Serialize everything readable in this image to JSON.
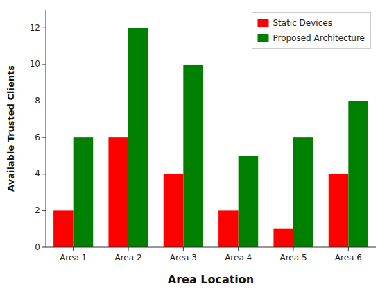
{
  "chart_data": {
    "type": "bar",
    "xlabel": "Area Location",
    "ylabel": "Available Trusted Clients",
    "categories": [
      "Area 1",
      "Area 2",
      "Area 3",
      "Area 4",
      "Area 5",
      "Area 6"
    ],
    "series": [
      {
        "name": "Static Devices",
        "color": "#ff0000",
        "values": [
          2,
          6,
          4,
          2,
          1,
          4
        ]
      },
      {
        "name": "Proposed Architecture",
        "color": "#008000",
        "values": [
          6,
          12,
          10,
          5,
          6,
          8
        ]
      }
    ],
    "ylim": [
      0,
      13
    ],
    "yticks": [
      0,
      2,
      4,
      6,
      8,
      10,
      12
    ],
    "grid": false,
    "legend": "upper right"
  }
}
